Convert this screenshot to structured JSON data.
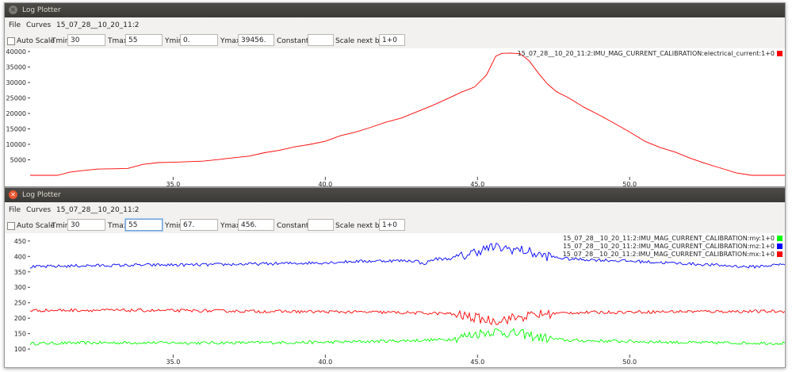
{
  "windows": [
    {
      "title": "Log Plotter",
      "menu": {
        "file": "File",
        "curves": "Curves",
        "log": "15_07_28__10_20_11:2"
      },
      "controls": {
        "autoscale_label": "Auto Scale",
        "tmin_label": "Tmin",
        "tmin": "30",
        "tmax_label": "Tmax",
        "tmax": "55",
        "ymin_label": "Ymin",
        "ymin": "0.",
        "ymax_label": "Ymax",
        "ymax": "39456.",
        "constant_label": "Constant:",
        "constant": "",
        "scale_label": "Scale next by",
        "scale": "1+0"
      },
      "chart_data": {
        "type": "line",
        "xlim": [
          30.3,
          55.1
        ],
        "ylim": [
          0,
          40000
        ],
        "x_ticks": [
          "35.0",
          "40.0",
          "45.0",
          "50.0"
        ],
        "y_ticks": [
          "5000",
          "10000",
          "15000",
          "20000",
          "25000",
          "30000",
          "35000",
          "40000"
        ],
        "series": [
          {
            "name": "15_07_28__10_20_11:2:IMU_MAG_CURRENT_CALIBRATION:electrical_current:1+0",
            "color": "#ff0000",
            "x": [
              30.3,
              31.2,
              31.6,
              32.0,
              32.5,
              33.0,
              33.5,
              34.0,
              34.5,
              35.0,
              35.5,
              36.0,
              36.5,
              37.0,
              37.5,
              38.0,
              38.5,
              39.0,
              39.5,
              40.0,
              40.5,
              41.0,
              41.5,
              42.0,
              42.5,
              43.0,
              43.5,
              44.0,
              44.5,
              44.9,
              45.3,
              45.6,
              45.8,
              46.1,
              46.4,
              46.7,
              47.0,
              47.3,
              47.6,
              48.0,
              48.5,
              49.0,
              49.5,
              50.0,
              50.5,
              51.0,
              51.5,
              52.0,
              52.5,
              53.0,
              53.5,
              54.0,
              55.1
            ],
            "values": [
              0,
              0,
              1000,
              1500,
              2000,
              2100,
              2200,
              3500,
              4100,
              4200,
              4400,
              4600,
              5100,
              5700,
              6200,
              7300,
              8100,
              9200,
              10000,
              11000,
              12800,
              14000,
              15500,
              17200,
              18500,
              20500,
              22500,
              24700,
              27000,
              28500,
              32500,
              38500,
              39400,
              39500,
              39300,
              37000,
              33000,
              29500,
              27000,
              25000,
              22000,
              19500,
              16800,
              14000,
              11000,
              9000,
              7500,
              5500,
              3800,
              2300,
              800,
              0,
              0
            ]
          }
        ]
      }
    },
    {
      "title": "Log Plotter",
      "menu": {
        "file": "File",
        "curves": "Curves",
        "log": "15_07_28__10_20_11:2"
      },
      "controls": {
        "autoscale_label": "Auto Scale",
        "tmin_label": "Tmin",
        "tmin": "30",
        "tmax_label": "Tmax",
        "tmax": "55",
        "ymin_label": "Ymin",
        "ymin": "67.",
        "ymax_label": "Ymax",
        "ymax": "456.",
        "constant_label": "Constant:",
        "constant": "",
        "scale_label": "Scale next by",
        "scale": "1+0"
      },
      "chart_data": {
        "type": "line",
        "xlim": [
          30.3,
          55.1
        ],
        "ylim": [
          90,
          465
        ],
        "x_ticks": [
          "35.0",
          "40.0",
          "45.0",
          "50.0"
        ],
        "y_ticks": [
          "100",
          "150",
          "200",
          "250",
          "300",
          "350",
          "400",
          "450"
        ],
        "series": [
          {
            "name": "15_07_28__10_20_11:2:IMU_MAG_CURRENT_CALIBRATION:my:1+0",
            "color": "#00ff00",
            "x": [
              30.3,
              32.0,
              34.0,
              36.0,
              38.0,
              40.0,
              42.0,
              43.0,
              44.0,
              44.5,
              45.0,
              45.5,
              46.0,
              46.5,
              47.0,
              48.0,
              50.0,
              52.0,
              55.1
            ],
            "values": [
              118,
              120,
              121,
              120,
              121,
              122,
              126,
              128,
              131,
              140,
              150,
              158,
              152,
              148,
              138,
              128,
              125,
              121,
              119
            ]
          },
          {
            "name": "15_07_28__10_20_11:2:IMU_MAG_CURRENT_CALIBRATION:mz:1+0",
            "color": "#0000ff",
            "x": [
              30.3,
              32.0,
              34.0,
              36.0,
              38.0,
              40.0,
              41.0,
              42.0,
              43.0,
              43.2,
              43.6,
              44.0,
              44.5,
              45.0,
              45.5,
              46.0,
              46.5,
              47.0,
              47.5,
              48.0,
              50.0,
              52.0,
              54.0,
              55.1
            ],
            "values": [
              366,
              370,
              372,
              373,
              376,
              380,
              384,
              386,
              386,
              375,
              392,
              392,
              400,
              418,
              430,
              425,
              420,
              405,
              398,
              392,
              385,
              376,
              366,
              375
            ]
          },
          {
            "name": "15_07_28__10_20_11:2:IMU_MAG_CURRENT_CALIBRATION:mx:1+0",
            "color": "#ff0000",
            "x": [
              30.3,
              32.0,
              34.0,
              36.0,
              38.0,
              40.0,
              42.0,
              44.0,
              44.5,
              45.0,
              45.5,
              46.0,
              46.5,
              47.0,
              48.0,
              50.0,
              52.0,
              55.1
            ],
            "values": [
              225,
              226,
              225,
              224,
              222,
              221,
              219,
              215,
              208,
              200,
              192,
              198,
              205,
              212,
              218,
              220,
              222,
              222
            ]
          }
        ]
      }
    }
  ]
}
